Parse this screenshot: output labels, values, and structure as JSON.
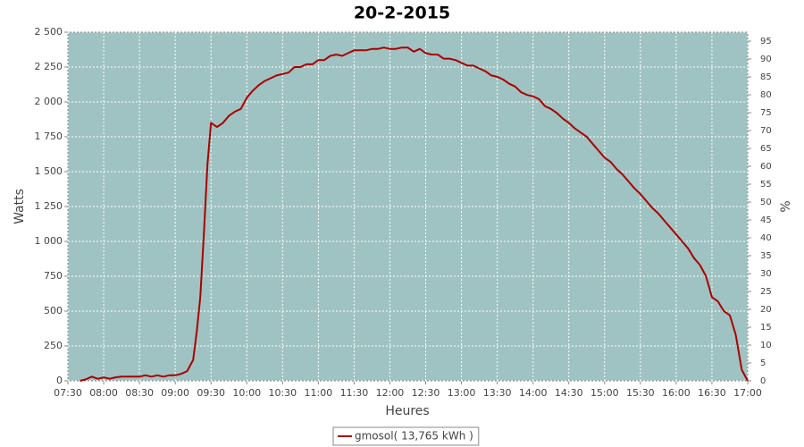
{
  "chart_data": {
    "type": "line",
    "title": "20-2-2015",
    "x_label": "Heures",
    "y_label": "Watts",
    "y2_label": "%",
    "xlim": [
      "07:30",
      "17:00"
    ],
    "xticks": [
      "07:30",
      "08:00",
      "08:30",
      "09:00",
      "09:30",
      "10:00",
      "10:30",
      "11:00",
      "11:30",
      "12:00",
      "12:30",
      "13:00",
      "13:30",
      "14:00",
      "14:30",
      "15:00",
      "15:30",
      "16:00",
      "16:30",
      "17:00"
    ],
    "ylim": [
      0,
      2500
    ],
    "yticks": [
      0,
      250,
      500,
      750,
      {
        "value": 1000,
        "label": "1 000"
      },
      {
        "value": 1250,
        "label": "1 250"
      },
      {
        "value": 1500,
        "label": "1 500"
      },
      {
        "value": 1750,
        "label": "1 750"
      },
      {
        "value": 2000,
        "label": "2 000"
      },
      {
        "value": 2250,
        "label": "2 250"
      },
      {
        "value": 2500,
        "label": "2 500"
      }
    ],
    "y2lim": [
      0,
      97.5
    ],
    "y2ticks": [
      0,
      5,
      10,
      15,
      20,
      25,
      30,
      35,
      40,
      45,
      50,
      55,
      60,
      65,
      70,
      75,
      80,
      85,
      90,
      95
    ],
    "grid": true,
    "background": "#9fc3c2",
    "legend": "bottom",
    "x": [
      "07:40",
      "07:45",
      "07:50",
      "07:55",
      "08:00",
      "08:05",
      "08:10",
      "08:15",
      "08:20",
      "08:25",
      "08:30",
      "08:35",
      "08:40",
      "08:45",
      "08:50",
      "08:55",
      "09:00",
      "09:05",
      "09:10",
      "09:15",
      "09:18",
      "09:21",
      "09:24",
      "09:27",
      "09:30",
      "09:35",
      "09:40",
      "09:45",
      "09:50",
      "09:55",
      "10:00",
      "10:05",
      "10:10",
      "10:15",
      "10:20",
      "10:25",
      "10:30",
      "10:35",
      "10:40",
      "10:45",
      "10:50",
      "10:55",
      "11:00",
      "11:05",
      "11:10",
      "11:15",
      "11:20",
      "11:25",
      "11:30",
      "11:35",
      "11:40",
      "11:45",
      "11:50",
      "11:55",
      "12:00",
      "12:05",
      "12:10",
      "12:15",
      "12:20",
      "12:25",
      "12:30",
      "12:35",
      "12:40",
      "12:45",
      "12:50",
      "12:55",
      "13:00",
      "13:05",
      "13:10",
      "13:15",
      "13:20",
      "13:25",
      "13:30",
      "13:35",
      "13:40",
      "13:45",
      "13:50",
      "13:55",
      "14:00",
      "14:05",
      "14:10",
      "14:15",
      "14:20",
      "14:25",
      "14:30",
      "14:35",
      "14:40",
      "14:45",
      "14:50",
      "14:55",
      "15:00",
      "15:05",
      "15:10",
      "15:15",
      "15:20",
      "15:25",
      "15:30",
      "15:35",
      "15:40",
      "15:45",
      "15:50",
      "15:55",
      "16:00",
      "16:05",
      "16:10",
      "16:15",
      "16:20",
      "16:25",
      "16:30",
      "16:35",
      "16:40",
      "16:45",
      "16:50",
      "16:55",
      "17:00"
    ],
    "series": [
      {
        "name": "gmosol( 13,765 kWh )",
        "color": "#aa0000",
        "values": [
          0,
          10,
          30,
          15,
          25,
          15,
          25,
          30,
          30,
          30,
          30,
          40,
          30,
          40,
          30,
          40,
          40,
          50,
          70,
          150,
          350,
          600,
          1050,
          1550,
          1850,
          1820,
          1850,
          1900,
          1930,
          1950,
          2030,
          2080,
          2120,
          2150,
          2170,
          2190,
          2200,
          2210,
          2250,
          2250,
          2270,
          2270,
          2300,
          2300,
          2330,
          2340,
          2330,
          2350,
          2370,
          2370,
          2370,
          2380,
          2380,
          2390,
          2380,
          2380,
          2390,
          2390,
          2360,
          2380,
          2350,
          2340,
          2340,
          2310,
          2310,
          2300,
          2280,
          2260,
          2260,
          2240,
          2220,
          2190,
          2180,
          2160,
          2130,
          2110,
          2070,
          2050,
          2040,
          2020,
          1970,
          1950,
          1920,
          1880,
          1850,
          1810,
          1780,
          1750,
          1700,
          1650,
          1600,
          1570,
          1520,
          1480,
          1430,
          1380,
          1340,
          1290,
          1240,
          1200,
          1150,
          1100,
          1050,
          1000,
          950,
          880,
          830,
          750,
          600,
          570,
          500,
          470,
          330,
          80,
          0
        ]
      }
    ]
  }
}
